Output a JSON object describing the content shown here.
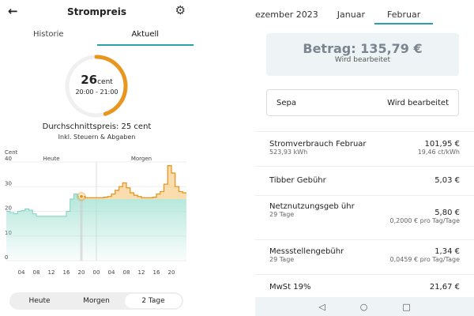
{
  "left": {
    "title": "Strompreis",
    "tabs": [
      {
        "label": "Historie",
        "active": false
      },
      {
        "label": "Aktuell",
        "active": true
      }
    ],
    "gauge": {
      "value": "26",
      "unit": "cent",
      "time": "20:00 - 21:00",
      "fraction": 0.45,
      "color": "#e8961e"
    },
    "average": "Durchschnittspreis: 25 cent",
    "note": "Inkl. Steuern & Abgaben",
    "segments": [
      {
        "label": "Heute",
        "active": false
      },
      {
        "label": "Morgen",
        "active": false
      },
      {
        "label": "2 Tage",
        "active": true
      }
    ]
  },
  "chart_data": {
    "type": "area",
    "ylabel": "Cent",
    "ylim": [
      0,
      40
    ],
    "yticks": [
      "0",
      "10",
      "20",
      "30",
      "40"
    ],
    "xticks": [
      "04",
      "08",
      "12",
      "16",
      "20",
      "00",
      "04",
      "08",
      "12",
      "16",
      "20"
    ],
    "day_labels": [
      "Heute",
      "Morgen"
    ],
    "current_hour": 20,
    "average": 25,
    "colors": {
      "past": "#9fe0d0",
      "future": "#f5c77a",
      "line": "#e8961e"
    },
    "hourly_values": [
      20,
      19.5,
      19,
      20,
      20.3,
      21,
      20.5,
      19,
      18,
      18,
      18,
      18,
      18,
      18,
      18,
      18,
      20,
      25,
      27,
      26,
      26,
      25.5,
      25.5,
      25.5,
      25.5,
      25.5,
      25.7,
      26,
      27,
      28.5,
      30,
      31.5,
      29.5,
      27.5,
      26.5,
      26,
      25.5,
      25.5,
      25.5,
      25.7,
      27,
      28,
      31,
      38.5,
      35.5,
      30,
      28,
      27.5,
      27
    ]
  },
  "right": {
    "tabs": [
      {
        "label": "ezember 2023",
        "active": false
      },
      {
        "label": "Januar",
        "active": false
      },
      {
        "label": "Februar",
        "active": true
      }
    ],
    "amount": "Betrag: 135,79 €",
    "amount_status": "Wird bearbeitet",
    "sepa": {
      "label": "Sepa",
      "status": "Wird bearbeitet"
    },
    "items": [
      {
        "name": "Stromverbrauch Februar",
        "sub": "523,93 kWh",
        "value": "101,95 €",
        "detail": "19,46 ct/kWh"
      },
      {
        "name": "Tibber Gebühr",
        "sub": "",
        "value": "5,03 €",
        "detail": ""
      },
      {
        "name": "Netznutzungsgeb ühr",
        "sub": "29 Tage",
        "value": "5,80 €",
        "detail": "0,2000 € pro Tag/Tage"
      },
      {
        "name": "Messstellengebühr",
        "sub": "29 Tage",
        "value": "1,34 €",
        "detail": "0,0459 € pro Tag/Tage"
      },
      {
        "name": "MwSt 19%",
        "sub": "",
        "value": "21,67 €",
        "detail": ""
      }
    ],
    "nav": {
      "back": "◁",
      "home": "○",
      "recent": "□"
    }
  }
}
